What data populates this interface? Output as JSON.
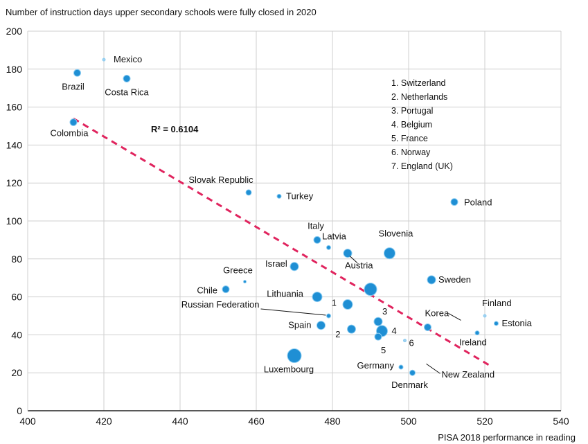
{
  "chart_data": {
    "type": "scatter",
    "title": "Number of instruction days upper secondary schools were fully closed in 2020",
    "xlabel": "PISA 2018 performance in reading",
    "ylabel": "",
    "xlim": [
      400,
      540
    ],
    "ylim": [
      0,
      200
    ],
    "x_ticks": [
      400,
      420,
      440,
      460,
      480,
      500,
      520,
      540
    ],
    "y_ticks": [
      0,
      20,
      40,
      60,
      80,
      100,
      120,
      140,
      160,
      180,
      200
    ],
    "grid": true,
    "r_squared_label": "R² = 0.6104",
    "trendline": {
      "x": [
        412,
        522
      ],
      "y": [
        154,
        23
      ]
    },
    "colors": {
      "point": "#1f8fd4",
      "point_faint": "#9fd0ef",
      "trendline": "#e0245e",
      "grid": "#cfcfcf",
      "axis": "#222222"
    },
    "points": [
      {
        "label": "Mexico",
        "x": 420,
        "y": 185,
        "size": 2,
        "faint": true
      },
      {
        "label": "Brazil",
        "x": 413,
        "y": 178,
        "size": 5
      },
      {
        "label": "Costa Rica",
        "x": 426,
        "y": 175,
        "size": 5
      },
      {
        "label": "Colombia",
        "x": 412,
        "y": 152,
        "size": 5
      },
      {
        "label": "Slovak Republic",
        "x": 458,
        "y": 115,
        "size": 4
      },
      {
        "label": "Turkey",
        "x": 466,
        "y": 113,
        "size": 3
      },
      {
        "label": "Poland",
        "x": 512,
        "y": 110,
        "size": 5
      },
      {
        "label": "Italy",
        "x": 476,
        "y": 90,
        "size": 5
      },
      {
        "label": "Latvia",
        "x": 479,
        "y": 86,
        "size": 3
      },
      {
        "label": "Austria",
        "x": 484,
        "y": 83,
        "size": 6
      },
      {
        "label": "Slovenia",
        "x": 495,
        "y": 83,
        "size": 8
      },
      {
        "label": "Israel",
        "x": 470,
        "y": 76,
        "size": 6
      },
      {
        "label": "Sweden",
        "x": 506,
        "y": 69,
        "size": 6
      },
      {
        "label": "Greece",
        "x": 457,
        "y": 68,
        "size": 2
      },
      {
        "label": "Chile",
        "x": 452,
        "y": 64,
        "size": 5
      },
      {
        "label": "Lithuania",
        "x": 476,
        "y": 60,
        "size": 7
      },
      {
        "label": "1",
        "x": 484,
        "y": 56,
        "size": 7
      },
      {
        "label": "",
        "x": 490,
        "y": 64,
        "size": 9
      },
      {
        "label": "Russian Federation",
        "x": 479,
        "y": 50,
        "size": 3
      },
      {
        "label": "Spain",
        "x": 477,
        "y": 45,
        "size": 6
      },
      {
        "label": "2",
        "x": 485,
        "y": 43,
        "size": 6
      },
      {
        "label": "3",
        "x": 492,
        "y": 47,
        "size": 6
      },
      {
        "label": "4",
        "x": 493,
        "y": 42,
        "size": 8
      },
      {
        "label": "5",
        "x": 492,
        "y": 39,
        "size": 5
      },
      {
        "label": "6",
        "x": 499,
        "y": 37,
        "size": 2,
        "faint": true
      },
      {
        "label": "Korea",
        "x": 505,
        "y": 44,
        "size": 5
      },
      {
        "label": "Finland",
        "x": 520,
        "y": 50,
        "size": 2,
        "faint": true
      },
      {
        "label": "Estonia",
        "x": 523,
        "y": 46,
        "size": 3
      },
      {
        "label": "Ireland",
        "x": 518,
        "y": 41,
        "size": 3
      },
      {
        "label": "Luxembourg",
        "x": 470,
        "y": 29,
        "size": 10
      },
      {
        "label": "Germany",
        "x": 498,
        "y": 23,
        "size": 3
      },
      {
        "label": "Denmark",
        "x": 501,
        "y": 20,
        "size": 4
      },
      {
        "label": "New Zealand",
        "x": 505,
        "y": 24,
        "size": 0
      }
    ],
    "legend": {
      "placement": "top-right",
      "items": [
        "1. Switzerland",
        "2. Netherlands",
        "3. Portugal",
        "4. Belgium",
        "5. France",
        "6. Norway",
        "7. England (UK)"
      ]
    }
  }
}
